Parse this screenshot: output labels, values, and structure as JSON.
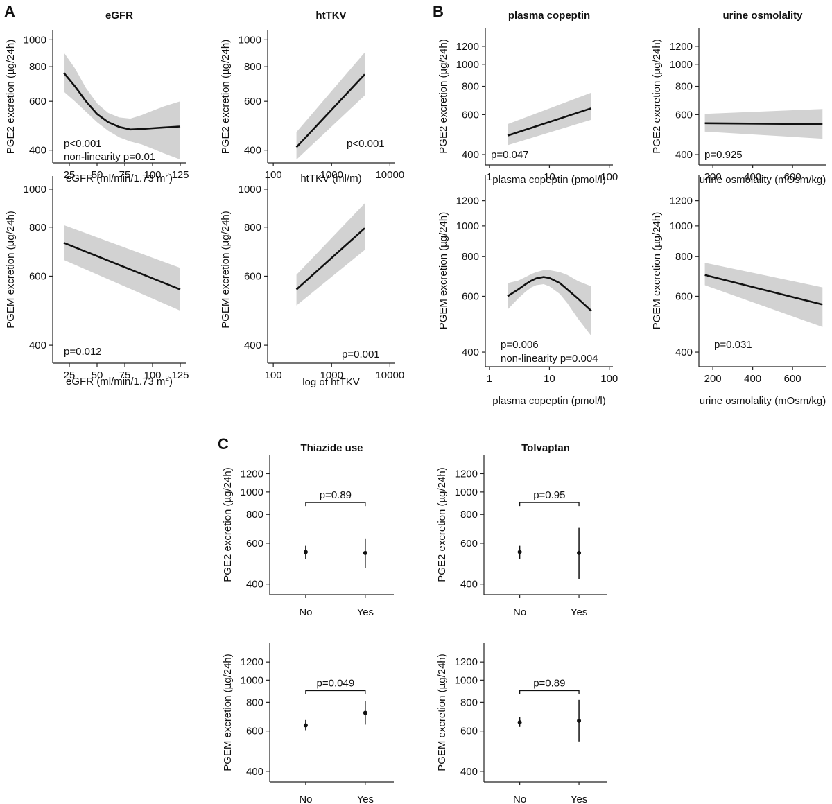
{
  "figure": {
    "panel_labels": [
      "A",
      "B",
      "C"
    ]
  },
  "chart_data": [
    {
      "id": "a1",
      "type": "line",
      "title": "eGFR",
      "xlabel": "eGFR (ml/min/1.73 m²)",
      "ylabel": "PGE2 excretion (µg/24h)",
      "xscale": "linear",
      "yscale": "log",
      "xlim": [
        10,
        130
      ],
      "ylim": [
        360,
        1080
      ],
      "xticks": [
        25,
        50,
        75,
        100,
        125
      ],
      "yticks": [
        400,
        600,
        800,
        1000
      ],
      "x": [
        20,
        30,
        40,
        50,
        60,
        70,
        80,
        90,
        100,
        110,
        125
      ],
      "y": [
        760,
        680,
        600,
        540,
        505,
        485,
        475,
        477,
        480,
        483,
        487
      ],
      "ci_low": [
        650,
        600,
        550,
        505,
        470,
        445,
        430,
        420,
        405,
        390,
        370
      ],
      "ci_high": [
        900,
        790,
        670,
        590,
        545,
        525,
        520,
        535,
        555,
        575,
        600
      ],
      "annotations": [
        "p<0.001",
        "non-linearity p=0.01"
      ]
    },
    {
      "id": "a2",
      "type": "line",
      "title": "htTKV",
      "xlabel": "htTKV (ml/m)",
      "ylabel": "PGE2 excretion (µg/24h)",
      "xscale": "log",
      "yscale": "log",
      "xlim": [
        80,
        12000
      ],
      "ylim": [
        360,
        1080
      ],
      "xticks": [
        100,
        1000,
        10000
      ],
      "yticks": [
        400,
        600,
        800,
        1000
      ],
      "x": [
        250,
        3700
      ],
      "y": [
        410,
        750
      ],
      "ci_low": [
        370,
        630
      ],
      "ci_high": [
        465,
        900
      ],
      "annotations": [
        "p<0.001"
      ]
    },
    {
      "id": "b1",
      "type": "line",
      "title": "plasma copeptin",
      "xlabel": "plasma copeptin (pmol/l)",
      "ylabel": "PGE2 excretion (µg/24h)",
      "xscale": "log",
      "yscale": "log",
      "xlim": [
        0.85,
        115
      ],
      "ylim": [
        360,
        1450
      ],
      "xticks": [
        1,
        10,
        100
      ],
      "yticks": [
        400,
        600,
        800,
        1000,
        1200
      ],
      "x": [
        2,
        50
      ],
      "y": [
        485,
        640
      ],
      "ci_low": [
        440,
        570
      ],
      "ci_high": [
        545,
        750
      ],
      "annotations": [
        "p=0.047"
      ]
    },
    {
      "id": "b2",
      "type": "line",
      "title": "urine osmolality",
      "xlabel": "urine osmolality (mOsm/kg)",
      "ylabel": "PGE2 excretion (µg/24h)",
      "xscale": "linear",
      "yscale": "log",
      "xlim": [
        130,
        770
      ],
      "ylim": [
        360,
        1450
      ],
      "xticks": [
        200,
        400,
        600
      ],
      "yticks": [
        400,
        600,
        800,
        1000,
        1200
      ],
      "x": [
        160,
        750
      ],
      "y": [
        550,
        545
      ],
      "ci_low": [
        505,
        470
      ],
      "ci_high": [
        605,
        635
      ],
      "annotations": [
        "p=0.925"
      ]
    },
    {
      "id": "a3",
      "type": "line",
      "title": "",
      "xlabel": "eGFR (ml/min/1.73 m²)",
      "ylabel": "PGEM excretion (µg/24h)",
      "xscale": "linear",
      "yscale": "log",
      "xlim": [
        10,
        130
      ],
      "ylim": [
        360,
        1080
      ],
      "xticks": [
        25,
        50,
        75,
        100,
        125
      ],
      "yticks": [
        400,
        600,
        800,
        1000
      ],
      "x": [
        20,
        125
      ],
      "y": [
        730,
        555
      ],
      "ci_low": [
        660,
        490
      ],
      "ci_high": [
        810,
        630
      ],
      "annotations": [
        "p=0.012"
      ]
    },
    {
      "id": "a4",
      "type": "line",
      "title": "",
      "xlabel": "log of htTKV",
      "ylabel": "PGEM excretion (µg/24h)",
      "xscale": "log",
      "yscale": "log",
      "xlim": [
        80,
        12000
      ],
      "ylim": [
        360,
        1080
      ],
      "xticks": [
        100,
        1000,
        10000
      ],
      "yticks": [
        400,
        600,
        800,
        1000
      ],
      "x": [
        250,
        3700
      ],
      "y": [
        555,
        795
      ],
      "ci_low": [
        505,
        700
      ],
      "ci_high": [
        605,
        920
      ],
      "annotations": [
        "p=0.001"
      ]
    },
    {
      "id": "b3",
      "type": "line",
      "title": "",
      "xlabel": "plasma copeptin (pmol/l)",
      "ylabel": "PGEM excretion (µg/24h)",
      "xscale": "log",
      "yscale": "log",
      "xlim": [
        0.85,
        115
      ],
      "ylim": [
        360,
        1450
      ],
      "xticks": [
        1,
        10,
        100
      ],
      "yticks": [
        400,
        600,
        800,
        1000,
        1200
      ],
      "x": [
        2,
        3,
        4,
        5,
        6,
        8,
        10,
        15,
        20,
        30,
        50
      ],
      "y": [
        600,
        630,
        655,
        672,
        683,
        690,
        685,
        660,
        630,
        590,
        540
      ],
      "ci_low": [
        545,
        590,
        620,
        640,
        650,
        655,
        645,
        610,
        570,
        510,
        450
      ],
      "ci_high": [
        660,
        672,
        690,
        705,
        715,
        725,
        725,
        715,
        700,
        670,
        645
      ],
      "annotations": [
        "p=0.006",
        "non-linearity p=0.004"
      ]
    },
    {
      "id": "b4",
      "type": "line",
      "title": "",
      "xlabel": "urine osmolality (mOsm/kg)",
      "ylabel": "PGEM excretion (µg/24h)",
      "xscale": "linear",
      "yscale": "log",
      "xlim": [
        130,
        770
      ],
      "ylim": [
        360,
        1450
      ],
      "xticks": [
        200,
        400,
        600
      ],
      "yticks": [
        400,
        600,
        800,
        1000,
        1200
      ],
      "x": [
        160,
        750
      ],
      "y": [
        700,
        565
      ],
      "ci_low": [
        650,
        480
      ],
      "ci_high": [
        765,
        640
      ],
      "annotations": [
        "p=0.031"
      ]
    },
    {
      "id": "c1",
      "type": "scatter",
      "title": "Thiazide use",
      "ylabel": "PGE2 excretion (µg/24h)",
      "yscale": "log",
      "ylim": [
        360,
        1450
      ],
      "categories": [
        "No",
        "Yes"
      ],
      "yticks": [
        400,
        600,
        800,
        1000,
        1200
      ],
      "values": [
        550,
        545
      ],
      "ci_low": [
        515,
        470
      ],
      "ci_high": [
        585,
        630
      ],
      "bracket": "p=0.89",
      "bracket_y": 900
    },
    {
      "id": "c2",
      "type": "scatter",
      "title": "Tolvaptan",
      "ylabel": "PGE2 excretion (µg/24h)",
      "yscale": "log",
      "ylim": [
        360,
        1450
      ],
      "categories": [
        "No",
        "Yes"
      ],
      "yticks": [
        400,
        600,
        800,
        1000,
        1200
      ],
      "values": [
        550,
        545
      ],
      "ci_low": [
        515,
        420
      ],
      "ci_high": [
        585,
        700
      ],
      "bracket": "p=0.95",
      "bracket_y": 900
    },
    {
      "id": "c3",
      "type": "scatter",
      "title": "",
      "ylabel": "PGEM excretion (µg/24h)",
      "yscale": "log",
      "ylim": [
        360,
        1450
      ],
      "categories": [
        "No",
        "Yes"
      ],
      "yticks": [
        400,
        600,
        800,
        1000,
        1200
      ],
      "values": [
        635,
        720
      ],
      "ci_low": [
        605,
        640
      ],
      "ci_high": [
        670,
        810
      ],
      "bracket": "p=0.049",
      "bracket_y": 900
    },
    {
      "id": "c4",
      "type": "scatter",
      "title": "",
      "ylabel": "PGEM excretion (µg/24h)",
      "yscale": "log",
      "ylim": [
        360,
        1450
      ],
      "categories": [
        "No",
        "Yes"
      ],
      "yticks": [
        400,
        600,
        800,
        1000,
        1200
      ],
      "values": [
        655,
        665
      ],
      "ci_low": [
        625,
        540
      ],
      "ci_high": [
        690,
        820
      ],
      "bracket": "p=0.89",
      "bracket_y": 900
    }
  ]
}
